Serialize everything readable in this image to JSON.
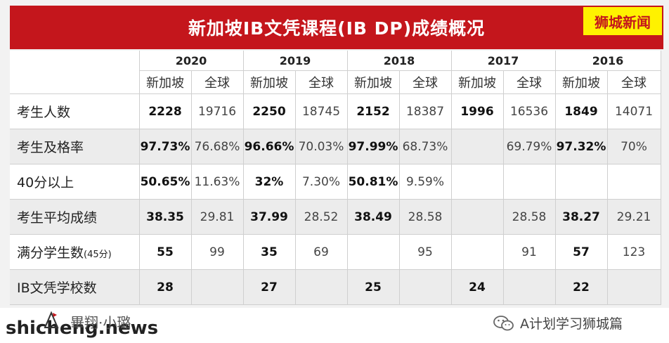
{
  "header": {
    "title": "新加坡IB文凭课程(IB DP)成绩概况",
    "brand_tag": "狮城新闻"
  },
  "table": {
    "years": [
      "2020",
      "2019",
      "2018",
      "2017",
      "2016"
    ],
    "sub_headers": [
      "新加坡",
      "全球"
    ],
    "rows": [
      {
        "label": "考生人数",
        "suffix": "",
        "cells": [
          "2228",
          "19716",
          "2250",
          "18745",
          "2152",
          "18387",
          "1996",
          "16536",
          "1849",
          "14071"
        ]
      },
      {
        "label": "考生及格率",
        "suffix": "",
        "cells": [
          "97.73%",
          "76.68%",
          "96.66%",
          "70.03%",
          "97.99%",
          "68.73%",
          "",
          "69.79%",
          "97.32%",
          "70%"
        ]
      },
      {
        "label": "40分以上",
        "suffix": "",
        "cells": [
          "50.65%",
          "11.63%",
          "32%",
          "7.30%",
          "50.81%",
          "9.59%",
          "",
          "",
          "",
          ""
        ]
      },
      {
        "label": "考生平均成绩",
        "suffix": "",
        "cells": [
          "38.35",
          "29.81",
          "37.99",
          "28.52",
          "38.49",
          "28.58",
          "",
          "28.58",
          "38.27",
          "29.21"
        ]
      },
      {
        "label": "满分学生数",
        "suffix": "(45分)",
        "cells": [
          "55",
          "99",
          "35",
          "69",
          "",
          "95",
          "",
          "91",
          "57",
          "123"
        ]
      },
      {
        "label": "IB文凭学校数",
        "suffix": "",
        "cells": [
          "28",
          "",
          "27",
          "",
          "25",
          "",
          "24",
          "",
          "22",
          ""
        ]
      }
    ]
  },
  "footer": {
    "site": "shicheng.news",
    "seal_text": "畢翔·小璐",
    "wechat_label": "A计划学习狮城篇"
  },
  "colors": {
    "title_bg": "#c4161c",
    "brand_tag_bg": "#fff200",
    "brand_tag_text": "#c4161c"
  }
}
